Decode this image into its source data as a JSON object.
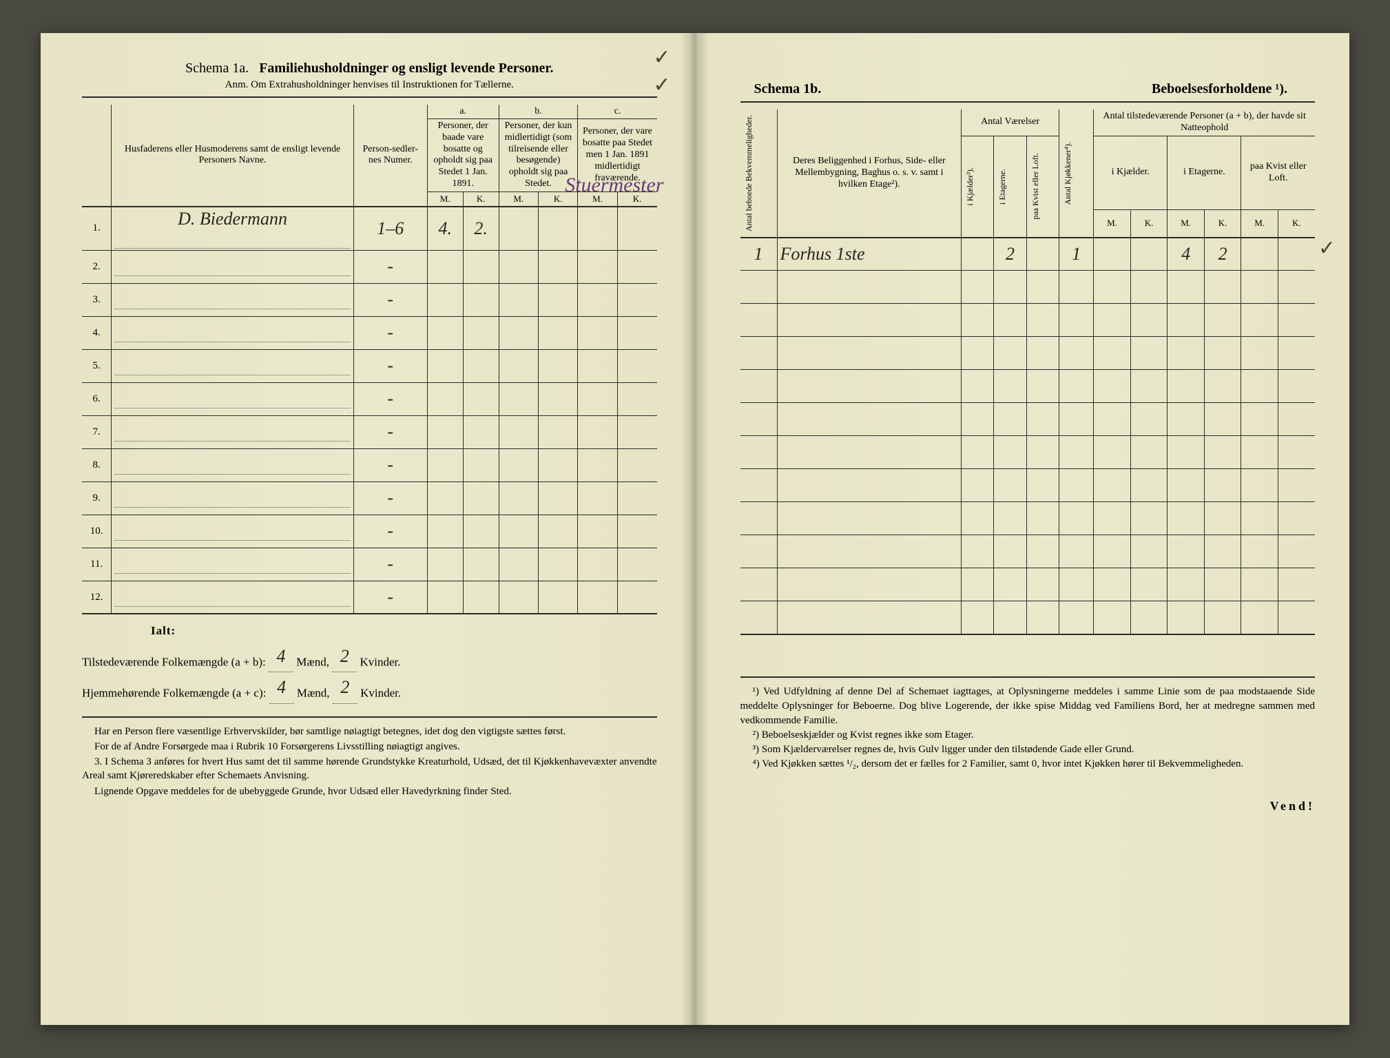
{
  "left": {
    "schema_label": "Schema 1a.",
    "schema_title": "Familiehusholdninger og ensligt levende Personer.",
    "anm": "Anm. Om Extrahusholdninger henvises til Instruktionen for Tællerne.",
    "col_name_hdr": "Husfaderens eller Husmoderens samt de ensligt levende Personers Navne.",
    "col_num_hdr": "Person-sedler-nes Numer.",
    "abc": {
      "a": "a.",
      "b": "b.",
      "c": "c."
    },
    "col_a_hdr": "Personer, der baade vare bosatte og opholdt sig paa Stedet 1 Jan. 1891.",
    "col_b_hdr": "Personer, der kun midlertidigt (som tilreisende eller besøgende) opholdt sig paa Stedet.",
    "col_c_hdr": "Personer, der vare bosatte paa Stedet men 1 Jan. 1891 midlertidigt fraværende.",
    "mk_m": "M.",
    "mk_k": "K.",
    "rows": [
      {
        "n": "1.",
        "name": "D. Biedermann",
        "num": "1–6",
        "aM": "4.",
        "aK": "2.",
        "bM": "",
        "bK": "",
        "cM": "",
        "cK": "",
        "annot": "Stuermester"
      },
      {
        "n": "2.",
        "name": "",
        "num": "-",
        "aM": "",
        "aK": "",
        "bM": "",
        "bK": "",
        "cM": "",
        "cK": ""
      },
      {
        "n": "3.",
        "name": "",
        "num": "-",
        "aM": "",
        "aK": "",
        "bM": "",
        "bK": "",
        "cM": "",
        "cK": ""
      },
      {
        "n": "4.",
        "name": "",
        "num": "-",
        "aM": "",
        "aK": "",
        "bM": "",
        "bK": "",
        "cM": "",
        "cK": ""
      },
      {
        "n": "5.",
        "name": "",
        "num": "-",
        "aM": "",
        "aK": "",
        "bM": "",
        "bK": "",
        "cM": "",
        "cK": ""
      },
      {
        "n": "6.",
        "name": "",
        "num": "-",
        "aM": "",
        "aK": "",
        "bM": "",
        "bK": "",
        "cM": "",
        "cK": ""
      },
      {
        "n": "7.",
        "name": "",
        "num": "-",
        "aM": "",
        "aK": "",
        "bM": "",
        "bK": "",
        "cM": "",
        "cK": ""
      },
      {
        "n": "8.",
        "name": "",
        "num": "-",
        "aM": "",
        "aK": "",
        "bM": "",
        "bK": "",
        "cM": "",
        "cK": ""
      },
      {
        "n": "9.",
        "name": "",
        "num": "-",
        "aM": "",
        "aK": "",
        "bM": "",
        "bK": "",
        "cM": "",
        "cK": ""
      },
      {
        "n": "10.",
        "name": "",
        "num": "-",
        "aM": "",
        "aK": "",
        "bM": "",
        "bK": "",
        "cM": "",
        "cK": ""
      },
      {
        "n": "11.",
        "name": "",
        "num": "-",
        "aM": "",
        "aK": "",
        "bM": "",
        "bK": "",
        "cM": "",
        "cK": ""
      },
      {
        "n": "12.",
        "name": "",
        "num": "-",
        "aM": "",
        "aK": "",
        "bM": "",
        "bK": "",
        "cM": "",
        "cK": ""
      }
    ],
    "summary": {
      "ialt": "Ialt:",
      "line1_label": "Tilstedeværende Folkemængde (a + b):",
      "line2_label": "Hjemmehørende Folkemængde (a + c):",
      "maend": "Mænd,",
      "kvinder": "Kvinder.",
      "v1m": "4",
      "v1k": "2",
      "v2m": "4",
      "v2k": "2"
    },
    "footnotes": [
      "Har en Person flere væsentlige Erhvervskilder, bør samtlige nøiagtigt betegnes, idet dog den vigtigste sættes først.",
      "For de af Andre Forsørgede maa i Rubrik 10 Forsørgerens Livsstilling nøiagtigt angives.",
      "3. I Schema 3 anføres for hvert Hus samt det til samme hørende Grundstykke Kreaturhold, Udsæd, det til Kjøkkenhavevæxter anvendte Areal samt Kjøreredskaber efter Schemaets Anvisning.",
      "Lignende Opgave meddeles for de ubebyggede Grunde, hvor Udsæd eller Havedyrkning finder Sted."
    ]
  },
  "right": {
    "schema_label": "Schema 1b.",
    "schema_title": "Beboelsesforholdene ¹).",
    "col_bekv_hdr": "Antal beboede Bekvemmeligheder.",
    "col_belig_hdr": "Deres Beliggenhed i Forhus, Side- eller Mellembygning, Baghus o. s. v. samt i hvilken Etage²).",
    "grp_vaer": "Antal Værelser",
    "col_kjaelder": "i Kjælder³).",
    "col_etagerne": "i Etagerne.",
    "col_kvist": "paa Kvist eller Loft.",
    "col_kjokken": "Antal Kjøkkener⁴).",
    "grp_pers": "Antal tilstedeværende Personer (a + b), der havde sit Natteophold",
    "col_p_kjael": "i Kjælder.",
    "col_p_etag": "i Etagerne.",
    "col_p_kvist": "paa Kvist eller Loft.",
    "mk_m": "M.",
    "mk_k": "K.",
    "rows": [
      {
        "bekv": "1",
        "belig": "Forhus 1ste",
        "kj": "",
        "et": "2",
        "kv": "",
        "kk": "1",
        "pKjM": "",
        "pKjK": "",
        "pEtM": "4",
        "pEtK": "2",
        "pKvM": "",
        "pKvK": ""
      },
      {
        "bekv": "",
        "belig": "",
        "kj": "",
        "et": "",
        "kv": "",
        "kk": "",
        "pKjM": "",
        "pKjK": "",
        "pEtM": "",
        "pEtK": "",
        "pKvM": "",
        "pKvK": ""
      },
      {
        "bekv": "",
        "belig": "",
        "kj": "",
        "et": "",
        "kv": "",
        "kk": "",
        "pKjM": "",
        "pKjK": "",
        "pEtM": "",
        "pEtK": "",
        "pKvM": "",
        "pKvK": ""
      },
      {
        "bekv": "",
        "belig": "",
        "kj": "",
        "et": "",
        "kv": "",
        "kk": "",
        "pKjM": "",
        "pKjK": "",
        "pEtM": "",
        "pEtK": "",
        "pKvM": "",
        "pKvK": ""
      },
      {
        "bekv": "",
        "belig": "",
        "kj": "",
        "et": "",
        "kv": "",
        "kk": "",
        "pKjM": "",
        "pKjK": "",
        "pEtM": "",
        "pEtK": "",
        "pKvM": "",
        "pKvK": ""
      },
      {
        "bekv": "",
        "belig": "",
        "kj": "",
        "et": "",
        "kv": "",
        "kk": "",
        "pKjM": "",
        "pKjK": "",
        "pEtM": "",
        "pEtK": "",
        "pKvM": "",
        "pKvK": ""
      },
      {
        "bekv": "",
        "belig": "",
        "kj": "",
        "et": "",
        "kv": "",
        "kk": "",
        "pKjM": "",
        "pKjK": "",
        "pEtM": "",
        "pEtK": "",
        "pKvM": "",
        "pKvK": ""
      },
      {
        "bekv": "",
        "belig": "",
        "kj": "",
        "et": "",
        "kv": "",
        "kk": "",
        "pKjM": "",
        "pKjK": "",
        "pEtM": "",
        "pEtK": "",
        "pKvM": "",
        "pKvK": ""
      },
      {
        "bekv": "",
        "belig": "",
        "kj": "",
        "et": "",
        "kv": "",
        "kk": "",
        "pKjM": "",
        "pKjK": "",
        "pEtM": "",
        "pEtK": "",
        "pKvM": "",
        "pKvK": ""
      },
      {
        "bekv": "",
        "belig": "",
        "kj": "",
        "et": "",
        "kv": "",
        "kk": "",
        "pKjM": "",
        "pKjK": "",
        "pEtM": "",
        "pEtK": "",
        "pKvM": "",
        "pKvK": ""
      },
      {
        "bekv": "",
        "belig": "",
        "kj": "",
        "et": "",
        "kv": "",
        "kk": "",
        "pKjM": "",
        "pKjK": "",
        "pEtM": "",
        "pEtK": "",
        "pKvM": "",
        "pKvK": ""
      },
      {
        "bekv": "",
        "belig": "",
        "kj": "",
        "et": "",
        "kv": "",
        "kk": "",
        "pKjM": "",
        "pKjK": "",
        "pEtM": "",
        "pEtK": "",
        "pKvM": "",
        "pKvK": ""
      }
    ],
    "footnotes": [
      "¹) Ved Udfyldning af denne Del af Schemaet iagttages, at Oplysningerne meddeles i samme Linie som de paa modstaaende Side meddelte Oplysninger for Beboerne. Dog blive Logerende, der ikke spise Middag ved Familiens Bord, her at medregne sammen med vedkommende Familie.",
      "²) Beboelseskjælder og Kvist regnes ikke som Etager.",
      "³) Som Kjælderværelser regnes de, hvis Gulv ligger under den tilstødende Gade eller Grund.",
      "⁴) Ved Kjøkken sættes ¹/₂, dersom det er fælles for 2 Familier, samt 0, hvor intet Kjøkken hører til Bekvemmeligheden."
    ],
    "vend": "Vend!"
  }
}
